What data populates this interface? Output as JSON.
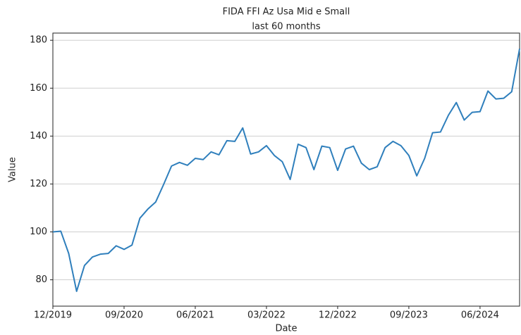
{
  "chart_data": {
    "type": "line",
    "title": "FIDA FFI Az Usa Mid e Small",
    "subtitle": "last 60 months",
    "x_label": "Date",
    "y_label": "Value",
    "categories": [
      "12/2019",
      null,
      null,
      null,
      null,
      null,
      null,
      null,
      null,
      "09/2020",
      null,
      null,
      null,
      null,
      null,
      null,
      null,
      null,
      "06/2021",
      null,
      null,
      null,
      null,
      null,
      null,
      null,
      null,
      "03/2022",
      null,
      null,
      null,
      null,
      null,
      null,
      null,
      null,
      "12/2022",
      null,
      null,
      null,
      null,
      null,
      null,
      null,
      null,
      "09/2023",
      null,
      null,
      null,
      null,
      null,
      null,
      null,
      null,
      "06/2024",
      null,
      null,
      null,
      null,
      null
    ],
    "series": [
      {
        "name": "Value",
        "color": "#2f7fbc",
        "values": [
          100,
          100.3,
          91,
          75.2,
          86,
          89.5,
          90.7,
          91,
          94.2,
          92.7,
          94.5,
          105.7,
          109.5,
          112.5,
          119.8,
          127.5,
          129,
          127.8,
          130.7,
          130.2,
          133.4,
          132.2,
          138.1,
          137.8,
          143.4,
          132.5,
          133.4,
          136,
          131.9,
          129.3,
          121.9,
          136.6,
          135.2,
          126,
          135.8,
          135.2,
          125.7,
          134.6,
          135.8,
          128.7,
          126,
          127.2,
          135.2,
          137.8,
          136,
          131.9,
          123.4,
          130.7,
          141.4,
          141.7,
          148.7,
          154,
          146.7,
          149.9,
          150.2,
          158.8,
          155.5,
          155.8,
          158.5,
          176.5
        ]
      }
    ],
    "ylim": [
      69,
      183
    ],
    "yticks": [
      80,
      100,
      120,
      140,
      160,
      180
    ],
    "grid": true
  }
}
